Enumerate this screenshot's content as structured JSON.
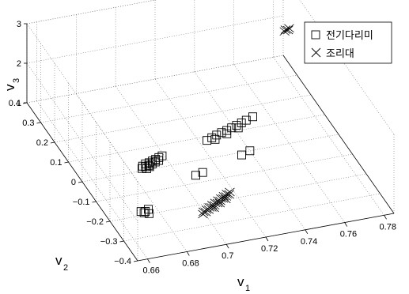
{
  "chart_data": {
    "type": "scatter",
    "projection": "3d",
    "grid": true,
    "legend_position": "top-right",
    "axes": {
      "v1": {
        "label": "v",
        "subscript": "1",
        "ticks": [
          "0.66",
          "0.68",
          "0.7",
          "0.72",
          "0.74",
          "0.76",
          "0.78"
        ],
        "range": [
          0.655,
          0.785
        ]
      },
      "v2": {
        "label": "v",
        "subscript": "2",
        "ticks": [
          "0.4",
          "0.3",
          "0.2",
          "0.1",
          "0",
          "−0.1",
          "−0.2",
          "−0.3",
          "−0.4"
        ],
        "range": [
          -0.4,
          0.4
        ]
      },
      "v3": {
        "label": "v",
        "subscript": "3",
        "ticks": [
          "1",
          "2",
          "3"
        ],
        "range": [
          1,
          3
        ]
      }
    },
    "series": [
      {
        "name": "전기다리미",
        "marker": "square",
        "color": "#000000",
        "points": [
          [
            0.672,
            -0.182,
            1
          ],
          [
            0.673,
            -0.19,
            1
          ],
          [
            0.674,
            -0.185,
            1
          ],
          [
            0.675,
            -0.198,
            1
          ],
          [
            0.676,
            -0.178,
            1
          ],
          [
            0.686,
            0.01,
            1
          ],
          [
            0.687,
            0.02,
            1
          ],
          [
            0.688,
            0.015,
            1
          ],
          [
            0.689,
            0.028,
            1
          ],
          [
            0.69,
            0.018,
            1
          ],
          [
            0.691,
            0.03,
            1
          ],
          [
            0.692,
            0.022,
            1
          ],
          [
            0.693,
            0.035,
            1
          ],
          [
            0.694,
            0.028,
            1
          ],
          [
            0.695,
            0.04,
            1
          ],
          [
            0.696,
            0.032,
            1
          ],
          [
            0.697,
            0.045,
            1
          ],
          [
            0.688,
            0.005,
            1
          ],
          [
            0.69,
            0.012,
            1
          ],
          [
            0.699,
            0.05,
            1
          ],
          [
            0.708,
            -0.065,
            1
          ],
          [
            0.712,
            -0.058,
            1
          ],
          [
            0.724,
            0.082,
            1
          ],
          [
            0.727,
            0.09,
            1
          ],
          [
            0.73,
            0.098,
            1
          ],
          [
            0.733,
            0.105,
            1
          ],
          [
            0.736,
            0.11,
            1
          ],
          [
            0.739,
            0.118,
            1
          ],
          [
            0.742,
            0.125,
            1
          ],
          [
            0.745,
            0.132,
            1
          ],
          [
            0.748,
            0.14,
            1
          ],
          [
            0.728,
            0.08,
            1
          ],
          [
            0.735,
            0.095,
            1
          ],
          [
            0.742,
            0.112,
            1
          ],
          [
            0.752,
            0.15,
            1
          ],
          [
            0.735,
            -0.012,
            1
          ],
          [
            0.74,
            0.0,
            1
          ]
        ]
      },
      {
        "name": "조리대",
        "marker": "cross",
        "color": "#000000",
        "points": [
          [
            0.699,
            -0.245,
            1
          ],
          [
            0.701,
            -0.238,
            1
          ],
          [
            0.703,
            -0.23,
            1
          ],
          [
            0.705,
            -0.222,
            1
          ],
          [
            0.707,
            -0.215,
            1
          ],
          [
            0.709,
            -0.208,
            1
          ],
          [
            0.711,
            -0.2,
            1
          ],
          [
            0.713,
            -0.192,
            1
          ],
          [
            0.715,
            -0.185,
            1
          ],
          [
            0.717,
            -0.178,
            1
          ],
          [
            0.7,
            -0.235,
            1
          ],
          [
            0.702,
            -0.228,
            1
          ],
          [
            0.704,
            -0.22,
            1
          ],
          [
            0.706,
            -0.212,
            1
          ],
          [
            0.708,
            -0.205,
            1
          ],
          [
            0.71,
            -0.197,
            1
          ],
          [
            0.712,
            -0.19,
            1
          ],
          [
            0.714,
            -0.182,
            1
          ],
          [
            0.716,
            -0.175,
            1
          ],
          [
            0.718,
            -0.168,
            1
          ],
          [
            0.706,
            -0.226,
            1
          ],
          [
            0.71,
            -0.21,
            1
          ],
          [
            0.714,
            -0.196,
            1
          ],
          [
            0.772,
            0.205,
            2.7
          ],
          [
            0.773,
            0.212,
            2.7
          ],
          [
            0.774,
            0.208,
            2.7
          ],
          [
            0.775,
            0.215,
            2.7
          ]
        ]
      }
    ]
  }
}
